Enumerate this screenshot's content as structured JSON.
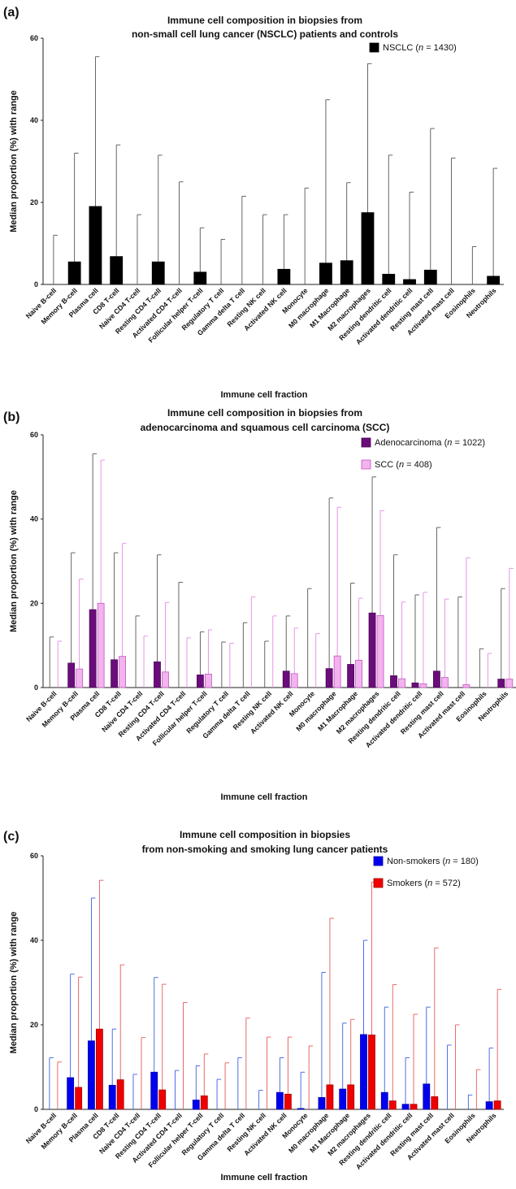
{
  "categories": [
    "Naive B-cell",
    "Memory B-cell",
    "Plasma cell",
    "CD8 T-cell",
    "Naive CD4 T-cell",
    "Resting CD4 T-cell",
    "Activated CD4 T-cell",
    "Follicular helper T-cell",
    "Regulatory T cell",
    "Gamma delta T cell",
    "Resting NK cell",
    "Activated NK cell",
    "Monocyte",
    "M0 macrophage",
    "M1 Macrophage",
    "M2 macrophages",
    "Resting dendritic cell",
    "Activated dendritic cell",
    "Resting mast cell",
    "Activated mast cell",
    "Eosinophils",
    "Neutrophils"
  ],
  "chart_data": [
    {
      "type": "bar",
      "panel_label": "(a)",
      "title_line1": "Immune cell composition in biopsies from",
      "title_line2": "non-small cell lung cancer (NSCLC) patients and controls",
      "xlabel": "Immune cell fraction",
      "ylabel": "Median proportion (%) with range",
      "ylim": [
        0,
        60
      ],
      "yticks": [
        "0",
        "20",
        "40",
        "60"
      ],
      "legend_position": "top-right",
      "series": [
        {
          "name_prefix": "NSCLC (",
          "name_n": "n",
          "name_suffix": " = 1430)",
          "color": "#000000",
          "edge": "#000000",
          "whisker": "#555555",
          "values": [
            0,
            5.5,
            19,
            6.8,
            0,
            5.5,
            0,
            3,
            0,
            0,
            0,
            3.7,
            0,
            5.2,
            5.8,
            17.5,
            2.5,
            1.2,
            3.5,
            0,
            0,
            2
          ],
          "upper": [
            12,
            32,
            55.5,
            34,
            17,
            31.5,
            25,
            13.8,
            11,
            21.5,
            17,
            17,
            23.5,
            45,
            24.8,
            53.8,
            31.5,
            22.5,
            38,
            30.8,
            9.2,
            28.3
          ]
        }
      ]
    },
    {
      "type": "bar",
      "panel_label": "(b)",
      "title_line1": "Immune cell composition in biopsies from",
      "title_line2": "adenocarcinoma and squamous cell carcinoma (SCC)",
      "xlabel": "Immune cell fraction",
      "ylabel": "Median proportion (%) with range",
      "ylim": [
        0,
        60
      ],
      "yticks": [
        "0",
        "20",
        "40",
        "60"
      ],
      "legend_position": "top-right",
      "series": [
        {
          "name_prefix": "Adenocarcinoma (",
          "name_n": "n",
          "name_suffix": " = 1022)",
          "color": "#6a0d7a",
          "edge": "#4a0756",
          "whisker": "#555555",
          "values": [
            0,
            5.8,
            18.5,
            6.6,
            0,
            6.1,
            0,
            3,
            0,
            0,
            0,
            3.9,
            0,
            4.5,
            5.5,
            17.7,
            2.8,
            1.1,
            3.9,
            0,
            0,
            2
          ],
          "upper": [
            12,
            32,
            55.5,
            32,
            17,
            31.5,
            25,
            13.2,
            10.8,
            15.4,
            11,
            17,
            23.5,
            45,
            24.8,
            50,
            31.5,
            22,
            38,
            21.5,
            9.2,
            23.5
          ]
        },
        {
          "name_prefix": "SCC (",
          "name_n": "n",
          "name_suffix": " = 408)",
          "color": "#f2b3ee",
          "edge": "#c458c0",
          "whisker": "#e48ae0",
          "values": [
            0,
            4.4,
            20,
            7.4,
            0,
            3.7,
            0,
            3.2,
            0,
            0,
            0,
            3.3,
            0,
            7.5,
            6.5,
            17.1,
            2.1,
            0.9,
            2.4,
            0.7,
            0,
            2
          ],
          "upper": [
            11,
            25.8,
            54,
            34.2,
            12.2,
            20.2,
            11.8,
            13.7,
            10.5,
            21.5,
            17,
            14.1,
            12.8,
            42.8,
            21.2,
            42,
            20.3,
            22.6,
            21,
            30.8,
            8.1,
            28.3
          ]
        }
      ]
    },
    {
      "type": "bar",
      "panel_label": "(c)",
      "title_line1": "Immune cell composition in biopsies",
      "title_line2": "from non-smoking and smoking lung cancer patients",
      "xlabel": "Immune cell fraction",
      "ylabel": "Median proportion (%) with range",
      "ylim": [
        0,
        60
      ],
      "yticks": [
        "0",
        "20",
        "40",
        "60"
      ],
      "legend_position": "top-right",
      "series": [
        {
          "name_prefix": "Non-smokers (",
          "name_n": "n",
          "name_suffix": " = 180)",
          "color": "#0000ee",
          "edge": "#0000aa",
          "whisker": "#3b5fe0",
          "values": [
            0,
            7.5,
            16.2,
            5.7,
            0,
            8.8,
            0,
            2.2,
            0,
            0,
            0,
            4,
            0.2,
            2.8,
            4.8,
            17.7,
            4,
            1.2,
            6,
            0,
            0,
            1.8
          ],
          "upper": [
            12.2,
            32,
            50,
            19,
            8.3,
            31.2,
            9.2,
            10.3,
            7.1,
            12.2,
            4.5,
            12.2,
            8.8,
            32.4,
            20.4,
            40,
            24.2,
            12.2,
            24.2,
            15.2,
            3.4,
            14.5
          ]
        },
        {
          "name_prefix": "Smokers (",
          "name_n": "n",
          "name_suffix": " = 572)",
          "color": "#ee0000",
          "edge": "#aa0000",
          "whisker": "#e65a5a",
          "values": [
            0,
            5.2,
            19,
            7,
            0,
            4.6,
            0,
            3.2,
            0,
            0,
            0,
            3.6,
            0,
            5.8,
            5.8,
            17.6,
            2,
            1.2,
            3,
            0,
            0,
            2
          ],
          "upper": [
            11.2,
            31.3,
            54.2,
            34.2,
            17,
            29.6,
            25.3,
            13.1,
            11,
            21.6,
            17.1,
            17.1,
            15,
            45.2,
            21.3,
            53.8,
            29.5,
            22.5,
            38.2,
            20,
            9.4,
            28.4
          ]
        }
      ]
    }
  ]
}
